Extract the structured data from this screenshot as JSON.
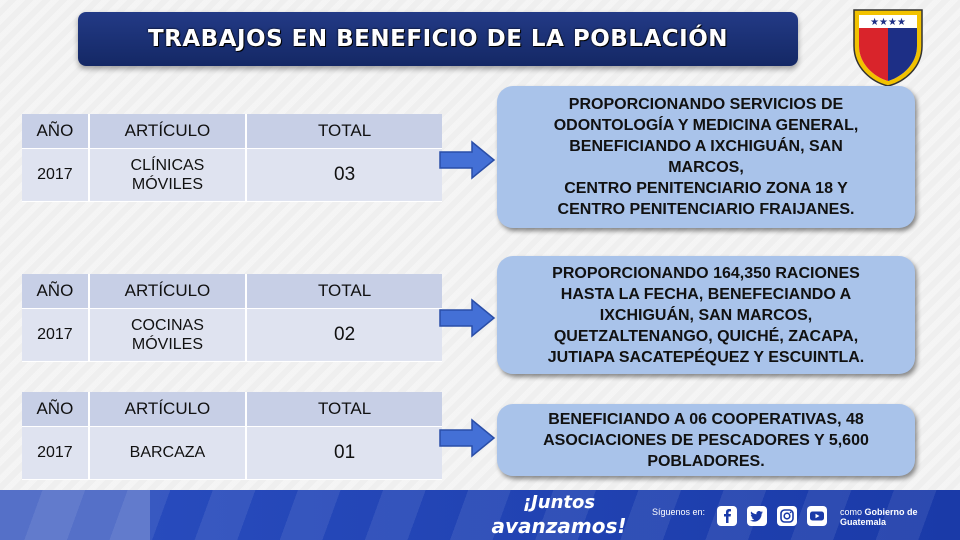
{
  "title": "TRABAJOS EN BENEFICIO DE LA POBLACIÓN",
  "headers": {
    "year": "AÑO",
    "article": "ARTÍCULO",
    "total": "TOTAL"
  },
  "rows": [
    {
      "year": "2017",
      "article": "CLÍNICAS\nMÓVILES",
      "total": "03",
      "description": "PROPORCIONANDO SERVICIOS DE\nODONTOLOGÍA Y MEDICINA GENERAL,\nBENEFICIANDO A IXCHIGUÁN, SAN\nMARCOS,\nCENTRO PENITENCIARIO ZONA 18 Y\nCENTRO PENITENCIARIO FRAIJANES."
    },
    {
      "year": "2017",
      "article": "COCINAS\nMÓVILES",
      "total": "02",
      "description": "PROPORCIONANDO 164,350 RACIONES\nHASTA LA FECHA, BENEFECIANDO A\nIXCHIGUÁN, SAN MARCOS,\nQUETZALTENANGO, QUICHÉ, ZACAPA,\nJUTIAPA  SACATEPÉQUEZ Y ESCUINTLA."
    },
    {
      "year": "2017",
      "article": "BARCAZA",
      "total": "01",
      "description": "BENEFICIANDO A 06 COOPERATIVAS, 48\nASOCIACIONES DE PESCADORES Y 5,600\nPOBLADORES."
    }
  ],
  "footer": {
    "slogan_line1": "¡Juntos",
    "slogan_line2": "avanzamos!",
    "follow_label": "Síguenos en:",
    "gov_prefix": "como",
    "gov_name": "Gobierno de Guatemala",
    "social_icons": [
      "facebook-icon",
      "twitter-icon",
      "instagram-icon",
      "youtube-icon"
    ]
  },
  "colors": {
    "title_bg": "#1b3174",
    "desc_bg": "#a9c3ea",
    "header_cell": "#c7cfe6",
    "row_cell": "#dfe3f0",
    "arrow": "#4470d6"
  }
}
